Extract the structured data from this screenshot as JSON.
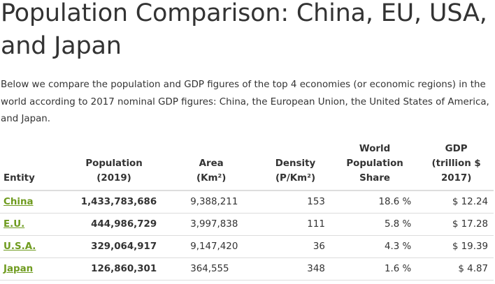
{
  "page": {
    "title": "Population Comparison: China, EU, USA, and Japan",
    "intro": "Below we compare the population and GDP figures of the top 4 economies (or economic regions) in the world according to 2017 nominal GDP figures: China, the European Union, the United States of America, and Japan."
  },
  "table": {
    "headers": {
      "entity": "Entity",
      "population": "Population\n(2019)",
      "area": "Area\n(Km²)",
      "density": "Density\n(P/Km²)",
      "share": "World\nPopulation\nShare",
      "gdp": "GDP\n(trillion $\n2017)"
    },
    "rows": [
      {
        "entity": "China",
        "population": "1,433,783,686",
        "area": "9,388,211",
        "density": "153",
        "share": "18.6 %",
        "gdp": "$ 12.24"
      },
      {
        "entity": "E.U.",
        "population": "444,986,729",
        "area": "3,997,838",
        "density": "111",
        "share": "5.8 %",
        "gdp": "$ 17.28"
      },
      {
        "entity": "U.S.A.",
        "population": "329,064,917",
        "area": "9,147,420",
        "density": "36",
        "share": "4.3 %",
        "gdp": "$ 19.39"
      },
      {
        "entity": "Japan",
        "population": "126,860,301",
        "area": "364,555",
        "density": "348",
        "share": "1.6 %",
        "gdp": "$ 4.87"
      }
    ]
  },
  "colors": {
    "text": "#333333",
    "link": "#6f9b1f",
    "border": "#dddddd"
  }
}
